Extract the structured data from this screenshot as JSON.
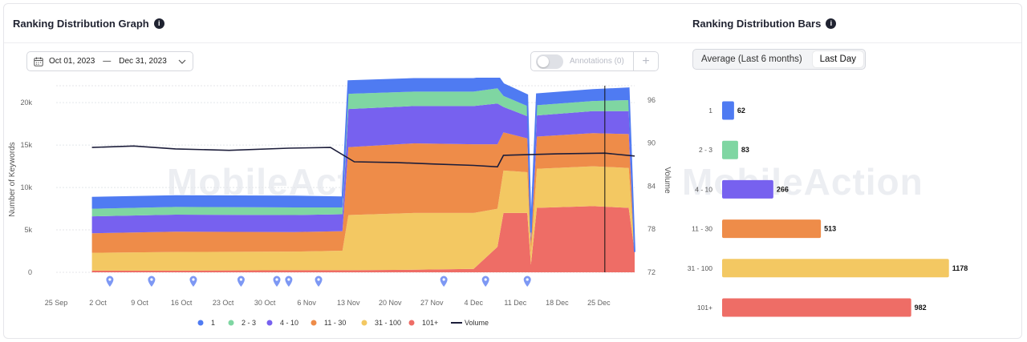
{
  "left_panel": {
    "title": "Ranking Distribution Graph",
    "info_icon": "info-icon",
    "date_range": {
      "start": "Oct 01, 2023",
      "separator": "—",
      "end": "Dec 31, 2023"
    },
    "annotations": {
      "label": "Annotations (0)",
      "toggle_on": false,
      "add_label": "+"
    }
  },
  "right_panel": {
    "title": "Ranking Distribution Bars",
    "tabs": [
      "Average (Last 6 months)",
      "Last Day"
    ],
    "active_tab": "Last Day"
  },
  "watermark": "MobileAction",
  "colors": {
    "r1": "#4f7bf2",
    "r2_3": "#7fd6a2",
    "r4_10": "#7761ef",
    "r11_30": "#ee8c49",
    "r31_100": "#f3c862",
    "r101": "#ee6d66",
    "volume": "#1c1d3a"
  },
  "chart_data": [
    {
      "type": "area",
      "title": "Ranking Distribution Graph",
      "ylabel": "Number of Keywords",
      "y2label": "Volume",
      "ylim": [
        0,
        22000
      ],
      "y_ticks": [
        "0",
        "5k",
        "10k",
        "15k",
        "20k"
      ],
      "y2lim": [
        72,
        98
      ],
      "y2_ticks": [
        "72",
        "78",
        "84",
        "90",
        "96"
      ],
      "x_ticks": [
        "25 Sep",
        "2 Oct",
        "9 Oct",
        "16 Oct",
        "23 Oct",
        "30 Oct",
        "6 Nov",
        "13 Nov",
        "20 Nov",
        "27 Nov",
        "4 Dec",
        "11 Dec",
        "18 Dec",
        "25 Dec"
      ],
      "x_domain": [
        0,
        97
      ],
      "series_keys": [
        "r101",
        "r31_100",
        "r11_30",
        "r4_10",
        "r2_3",
        "r1"
      ],
      "stacked_points": [
        {
          "day": 6,
          "r101": 200,
          "r31_100": 2100,
          "r11_30": 2300,
          "r4_10": 2000,
          "r2_3": 900,
          "r1": 1300
        },
        {
          "day": 20,
          "r101": 200,
          "r31_100": 2200,
          "r11_30": 2400,
          "r4_10": 2000,
          "r2_3": 900,
          "r1": 1300
        },
        {
          "day": 40,
          "r101": 250,
          "r31_100": 2200,
          "r11_30": 2300,
          "r4_10": 2000,
          "r2_3": 900,
          "r1": 1300
        },
        {
          "day": 48,
          "r101": 250,
          "r31_100": 2300,
          "r11_30": 2300,
          "r4_10": 2000,
          "r2_3": 800,
          "r1": 1200
        },
        {
          "day": 49,
          "r101": 250,
          "r31_100": 6500,
          "r11_30": 8000,
          "r4_10": 4500,
          "r2_3": 1800,
          "r1": 1500
        },
        {
          "day": 60,
          "r101": 300,
          "r31_100": 6700,
          "r11_30": 8200,
          "r4_10": 4400,
          "r2_3": 1700,
          "r1": 1500
        },
        {
          "day": 70,
          "r101": 400,
          "r31_100": 6600,
          "r11_30": 8100,
          "r4_10": 4500,
          "r2_3": 1700,
          "r1": 1500
        },
        {
          "day": 74,
          "r101": 3000,
          "r31_100": 4500,
          "r11_30": 7600,
          "r4_10": 4800,
          "r2_3": 1800,
          "r1": 1500
        },
        {
          "day": 75,
          "r101": 7000,
          "r31_100": 5000,
          "r11_30": 4500,
          "r4_10": 3000,
          "r2_3": 1300,
          "r1": 1400
        },
        {
          "day": 79,
          "r101": 7000,
          "r31_100": 4800,
          "r11_30": 4000,
          "r4_10": 2600,
          "r2_3": 1200,
          "r1": 1300
        },
        {
          "day": 79.6,
          "r101": 900,
          "r31_100": 1300,
          "r11_30": 1200,
          "r4_10": 700,
          "r2_3": 300,
          "r1": 300
        },
        {
          "day": 80.6,
          "r101": 7600,
          "r31_100": 4600,
          "r11_30": 3800,
          "r4_10": 2500,
          "r2_3": 1200,
          "r1": 1300
        },
        {
          "day": 90,
          "r101": 7800,
          "r31_100": 4700,
          "r11_30": 3900,
          "r4_10": 2600,
          "r2_3": 1200,
          "r1": 1300
        },
        {
          "day": 96,
          "r101": 7600,
          "r31_100": 4700,
          "r11_30": 4000,
          "r4_10": 2700,
          "r2_3": 1300,
          "r1": 1400
        },
        {
          "day": 97,
          "r101": 2400,
          "r31_100": 0,
          "r11_30": 0,
          "r4_10": 0,
          "r2_3": 0,
          "r1": 0
        }
      ],
      "volume_points": [
        {
          "day": 6,
          "v": 89.4
        },
        {
          "day": 13,
          "v": 89.6
        },
        {
          "day": 20,
          "v": 89.2
        },
        {
          "day": 29,
          "v": 89.0
        },
        {
          "day": 39,
          "v": 89.3
        },
        {
          "day": 46,
          "v": 89.4
        },
        {
          "day": 50,
          "v": 87.4
        },
        {
          "day": 57,
          "v": 87.3
        },
        {
          "day": 63,
          "v": 87.1
        },
        {
          "day": 70,
          "v": 86.9
        },
        {
          "day": 74,
          "v": 86.7
        },
        {
          "day": 75,
          "v": 88.3
        },
        {
          "day": 84,
          "v": 88.5
        },
        {
          "day": 92,
          "v": 88.6
        },
        {
          "day": 97,
          "v": 88.2
        }
      ],
      "annotation_marker_days": [
        9,
        16,
        23,
        31,
        37,
        39,
        44,
        65,
        72,
        79
      ],
      "crosshair_day": 92,
      "legend": [
        "1",
        "2 - 3",
        "4 - 10",
        "11 - 30",
        "31 - 100",
        "101+",
        "Volume"
      ]
    },
    {
      "type": "bar",
      "orientation": "horizontal",
      "title": "Ranking Distribution Bars",
      "categories": [
        "1",
        "2 - 3",
        "4 - 10",
        "11 - 30",
        "31 - 100",
        "101+"
      ],
      "values": [
        62,
        83,
        266,
        513,
        1178,
        982
      ],
      "value_labels": [
        "62",
        "83",
        "266",
        "513",
        "1178",
        "982"
      ],
      "xlim": [
        0,
        1200
      ]
    }
  ]
}
